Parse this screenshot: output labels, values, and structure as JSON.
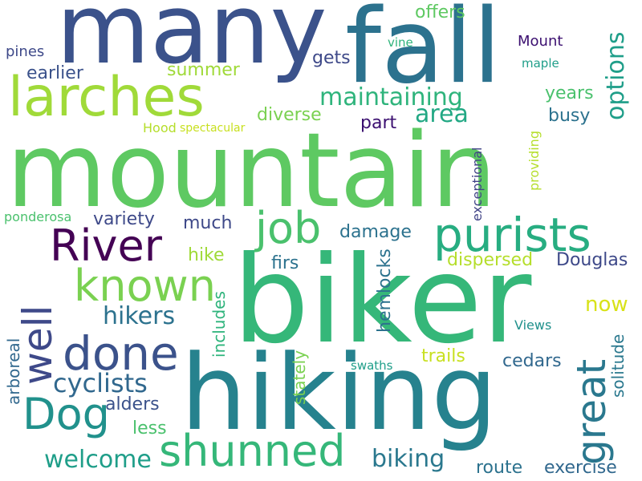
{
  "words": [
    {
      "text": "mountain",
      "color": "#5ec962",
      "vertical": false
    },
    {
      "text": "biker",
      "color": "#35b779",
      "vertical": false
    },
    {
      "text": "hiking",
      "color": "#26828e",
      "vertical": false
    },
    {
      "text": "many",
      "color": "#3b528b",
      "vertical": false
    },
    {
      "text": "fall",
      "color": "#2c728e",
      "vertical": false
    },
    {
      "text": "larches",
      "color": "#a0da39",
      "vertical": false
    },
    {
      "text": "purists",
      "color": "#27ad81",
      "vertical": false
    },
    {
      "text": "job",
      "color": "#4ac16d",
      "vertical": false
    },
    {
      "text": "known",
      "color": "#7ad151",
      "vertical": false
    },
    {
      "text": "River",
      "color": "#440154",
      "vertical": false
    },
    {
      "text": "done",
      "color": "#3b528b",
      "vertical": false
    },
    {
      "text": "Dog",
      "color": "#21918c",
      "vertical": false
    },
    {
      "text": "shunned",
      "color": "#35b779",
      "vertical": false
    },
    {
      "text": "great",
      "color": "#2a788e",
      "vertical": true
    },
    {
      "text": "well",
      "color": "#3e4989",
      "vertical": true
    },
    {
      "text": "cyclists",
      "color": "#31688e",
      "vertical": false
    },
    {
      "text": "hikers",
      "color": "#2c728e",
      "vertical": false
    },
    {
      "text": "welcome",
      "color": "#1f9e89",
      "vertical": false
    },
    {
      "text": "biking",
      "color": "#2a788e",
      "vertical": false
    },
    {
      "text": "maintaining",
      "color": "#2fb47c",
      "vertical": false
    },
    {
      "text": "options",
      "color": "#1f9e89",
      "vertical": true
    },
    {
      "text": "area",
      "color": "#22a884",
      "vertical": false
    },
    {
      "text": "summer",
      "color": "#a0da39",
      "vertical": false
    },
    {
      "text": "earlier",
      "color": "#3b528b",
      "vertical": false
    },
    {
      "text": "pines",
      "color": "#3e4989",
      "vertical": false
    },
    {
      "text": "offers",
      "color": "#5ec962",
      "vertical": false
    },
    {
      "text": "gets",
      "color": "#3e4989",
      "vertical": false
    },
    {
      "text": "Mount",
      "color": "#3b0f70",
      "vertical": false
    },
    {
      "text": "vine",
      "color": "#2fb47c",
      "vertical": false
    },
    {
      "text": "maple",
      "color": "#1f9e89",
      "vertical": false
    },
    {
      "text": "years",
      "color": "#4ac16d",
      "vertical": false
    },
    {
      "text": "busy",
      "color": "#2c728e",
      "vertical": false
    },
    {
      "text": "diverse",
      "color": "#7ad151",
      "vertical": false
    },
    {
      "text": "part",
      "color": "#3b0f70",
      "vertical": false
    },
    {
      "text": "Hood",
      "color": "#b5de2b",
      "vertical": false
    },
    {
      "text": "spectacular",
      "color": "#c8e020",
      "vertical": false
    },
    {
      "text": "providing",
      "color": "#b5de2b",
      "vertical": true
    },
    {
      "text": "exceptional",
      "color": "#414487",
      "vertical": true
    },
    {
      "text": "variety",
      "color": "#3e4989",
      "vertical": false
    },
    {
      "text": "much",
      "color": "#3e4989",
      "vertical": false
    },
    {
      "text": "ponderosa",
      "color": "#4ac16d",
      "vertical": false
    },
    {
      "text": "damage",
      "color": "#2c728e",
      "vertical": false
    },
    {
      "text": "hike",
      "color": "#a0da39",
      "vertical": false
    },
    {
      "text": "firs",
      "color": "#2c728e",
      "vertical": false
    },
    {
      "text": "dispersed",
      "color": "#b5de2b",
      "vertical": false
    },
    {
      "text": "Douglas",
      "color": "#3e4989",
      "vertical": false
    },
    {
      "text": "now",
      "color": "#d8e219",
      "vertical": false
    },
    {
      "text": "hemlocks",
      "color": "#2c728e",
      "vertical": true
    },
    {
      "text": "includes",
      "color": "#2fb47c",
      "vertical": true
    },
    {
      "text": "Views",
      "color": "#21918c",
      "vertical": false
    },
    {
      "text": "solitude",
      "color": "#2a788e",
      "vertical": true
    },
    {
      "text": "arboreal",
      "color": "#31688e",
      "vertical": true
    },
    {
      "text": "stately",
      "color": "#7ad151",
      "vertical": true
    },
    {
      "text": "swaths",
      "color": "#1f9e89",
      "vertical": false
    },
    {
      "text": "trails",
      "color": "#c8e020",
      "vertical": false
    },
    {
      "text": "cedars",
      "color": "#31688e",
      "vertical": false
    },
    {
      "text": "alders",
      "color": "#3b528b",
      "vertical": false
    },
    {
      "text": "less",
      "color": "#4ac16d",
      "vertical": false
    },
    {
      "text": "route",
      "color": "#2c728e",
      "vertical": false
    },
    {
      "text": "exercise",
      "color": "#31688e",
      "vertical": false
    }
  ]
}
